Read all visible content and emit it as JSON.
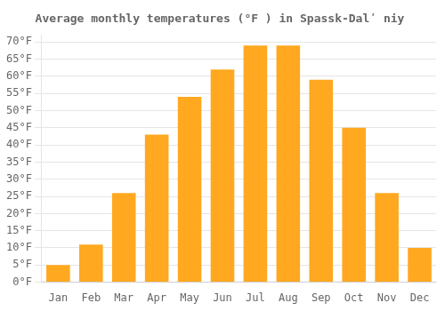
{
  "chart_data": {
    "type": "bar",
    "title": "Average monthly temperatures (°F ) in Spassk-Dalʹ niy",
    "categories": [
      "Jan",
      "Feb",
      "Mar",
      "Apr",
      "May",
      "Jun",
      "Jul",
      "Aug",
      "Sep",
      "Oct",
      "Nov",
      "Dec"
    ],
    "values": [
      5,
      11,
      26,
      43,
      54,
      62,
      69,
      69,
      59,
      45,
      26,
      10
    ],
    "color": "#FFA820",
    "ylim": [
      0,
      72
    ],
    "yticks": [
      {
        "value": 0,
        "label": "0°F"
      },
      {
        "value": 5,
        "label": "5°F"
      },
      {
        "value": 10,
        "label": "10°F"
      },
      {
        "value": 15,
        "label": "15°F"
      },
      {
        "value": 20,
        "label": "20°F"
      },
      {
        "value": 25,
        "label": "25°F"
      },
      {
        "value": 30,
        "label": "30°F"
      },
      {
        "value": 35,
        "label": "35°F"
      },
      {
        "value": 40,
        "label": "40°F"
      },
      {
        "value": 45,
        "label": "45°F"
      },
      {
        "value": 50,
        "label": "50°F"
      },
      {
        "value": 55,
        "label": "55°F"
      },
      {
        "value": 60,
        "label": "60°F"
      },
      {
        "value": 65,
        "label": "65°F"
      },
      {
        "value": 70,
        "label": "70°F"
      }
    ],
    "grid": true
  }
}
